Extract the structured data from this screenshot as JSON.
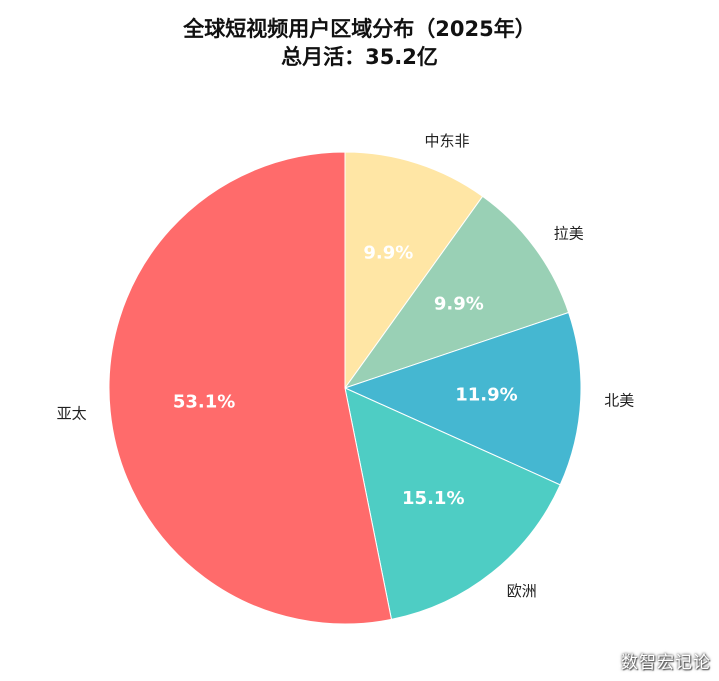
{
  "chart_data": {
    "type": "pie",
    "title": "全球短视频用户区域分布（2025年）",
    "subtitle": "总月活：35.2亿",
    "slices": [
      {
        "label": "中东非",
        "value": 9.9,
        "pct_label": "9.9%",
        "color": "#FFE6A5"
      },
      {
        "label": "拉美",
        "value": 9.9,
        "pct_label": "9.9%",
        "color": "#99D0B5"
      },
      {
        "label": "北美",
        "value": 11.9,
        "pct_label": "11.9%",
        "color": "#45B7D1"
      },
      {
        "label": "欧洲",
        "value": 15.1,
        "pct_label": "15.1%",
        "color": "#4ECDC4"
      },
      {
        "label": "亚太",
        "value": 53.1,
        "pct_label": "53.1%",
        "color": "#FF6B6B"
      }
    ],
    "start_angle_deg": 90,
    "direction": "clockwise",
    "legend": "none"
  },
  "watermark": "数智宏记论"
}
